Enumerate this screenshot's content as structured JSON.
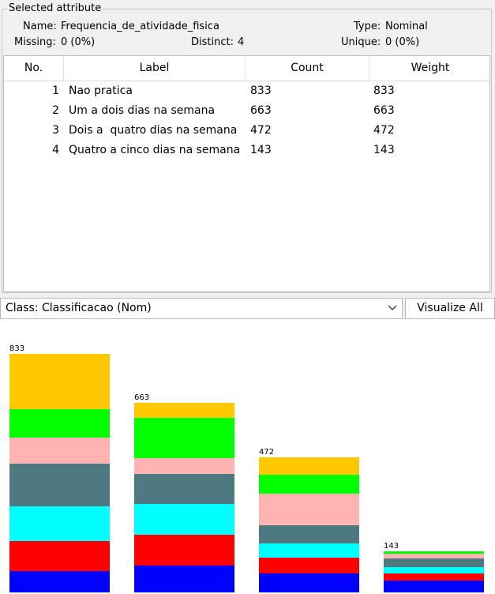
{
  "selected_attribute": {
    "title": "Selected attribute",
    "name_label": "Name:",
    "name_value": "Frequencia_de_atividade_fisica",
    "type_label": "Type:",
    "type_value": "Nominal",
    "missing_label": "Missing:",
    "missing_value": "0 (0%)",
    "distinct_label": "Distinct:",
    "distinct_value": "4",
    "unique_label": "Unique:",
    "unique_value": "0 (0%)"
  },
  "table": {
    "headers": [
      "No.",
      "Label",
      "Count",
      "Weight"
    ],
    "rows": [
      {
        "no": "1",
        "label": "Nao pratica",
        "count": "833",
        "weight": "833"
      },
      {
        "no": "2",
        "label": "Um a dois dias na semana",
        "count": "663",
        "weight": "663"
      },
      {
        "no": "3",
        "label": "Dois a  quatro dias na semana",
        "count": "472",
        "weight": "472"
      },
      {
        "no": "4",
        "label": "Quatro a cinco dias na semana",
        "count": "143",
        "weight": "143"
      }
    ]
  },
  "class_select": {
    "value": "Class: Classificacao (Nom)",
    "icon": "chevron-down-icon"
  },
  "visualize_button": {
    "label": "Visualize All"
  },
  "colors": {
    "class_colors": [
      "#0000ff",
      "#ff0000",
      "#00ffff",
      "#4d7a80",
      "#ffb3b3",
      "#00ff00",
      "#ffc800"
    ]
  },
  "chart_data": {
    "type": "bar",
    "stacked": true,
    "categories": [
      "Nao pratica",
      "Um a dois dias na semana",
      "Dois a  quatro dias na semana",
      "Quatro a cinco dias na semana"
    ],
    "totals": [
      833,
      663,
      472,
      143
    ],
    "series": [
      {
        "color": "#0000ff",
        "values": [
          75,
          95,
          65,
          40
        ]
      },
      {
        "color": "#ff0000",
        "values": [
          105,
          105,
          55,
          25
        ]
      },
      {
        "color": "#00ffff",
        "values": [
          120,
          110,
          50,
          22
        ]
      },
      {
        "color": "#4d7a80",
        "values": [
          150,
          105,
          65,
          32
        ]
      },
      {
        "color": "#ffb3b3",
        "values": [
          90,
          55,
          110,
          16
        ]
      },
      {
        "color": "#00ff00",
        "values": [
          100,
          140,
          65,
          8
        ]
      },
      {
        "color": "#ffc800",
        "values": [
          193,
          53,
          62,
          0
        ]
      }
    ],
    "data_labels": [
      "833",
      "663",
      "472",
      "143"
    ]
  }
}
